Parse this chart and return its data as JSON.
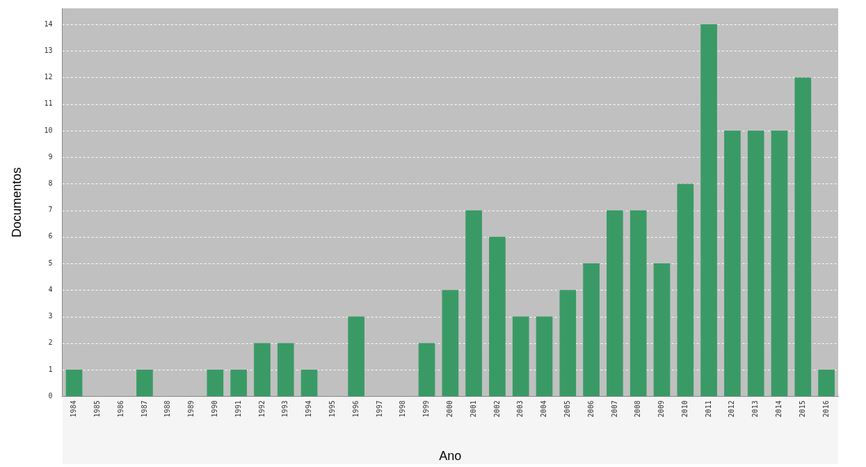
{
  "chart_data": {
    "type": "bar",
    "xlabel": "Ano",
    "ylabel": "Documentos",
    "categories": [
      "1984",
      "1985",
      "1986",
      "1987",
      "1988",
      "1989",
      "1990",
      "1991",
      "1992",
      "1993",
      "1994",
      "1995",
      "1996",
      "1997",
      "1998",
      "1999",
      "2000",
      "2001",
      "2002",
      "2003",
      "2004",
      "2005",
      "2006",
      "2007",
      "2008",
      "2009",
      "2010",
      "2011",
      "2012",
      "2013",
      "2014",
      "2015",
      "2016"
    ],
    "values": [
      1,
      0,
      0,
      1,
      0,
      0,
      1,
      1,
      2,
      2,
      1,
      0,
      3,
      0,
      0,
      2,
      4,
      7,
      6,
      3,
      3,
      4,
      5,
      7,
      7,
      5,
      8,
      14,
      10,
      10,
      10,
      12,
      1
    ],
    "color": "#3a9a66",
    "ylim": [
      0,
      14.6
    ],
    "yticks": [
      0,
      1,
      2,
      3,
      4,
      5,
      6,
      7,
      8,
      9,
      10,
      11,
      12,
      13,
      14
    ],
    "grid": "y",
    "legend": false
  }
}
